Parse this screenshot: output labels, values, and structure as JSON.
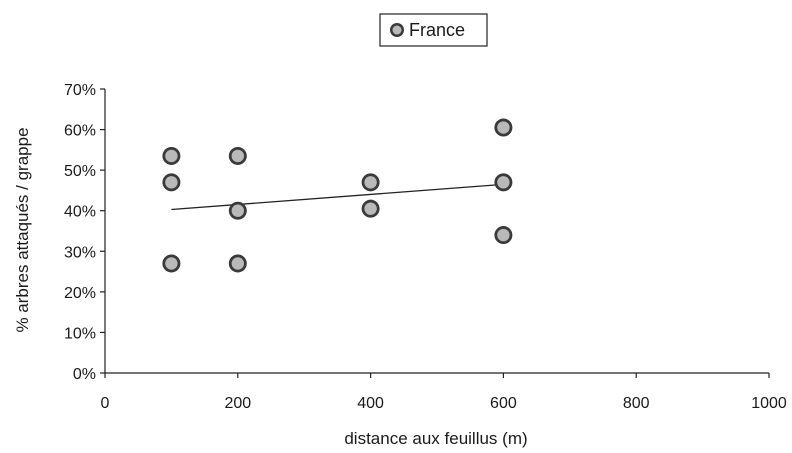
{
  "chart_data": {
    "type": "scatter",
    "xlabel": "distance aux feuillus (m)",
    "ylabel": "% arbres attaqués / grappe",
    "xlim": [
      0,
      1000
    ],
    "ylim": [
      0,
      0.7
    ],
    "x_ticks": [
      "0",
      "200",
      "400",
      "600",
      "800",
      "1000"
    ],
    "y_ticks": [
      "0%",
      "10%",
      "20%",
      "30%",
      "40%",
      "50%",
      "60%",
      "70%"
    ],
    "grid": false,
    "legend_position": "top-center",
    "series": [
      {
        "name": "France",
        "marker_color": "#b9b9b9",
        "points": [
          {
            "x": 100,
            "y": 0.535
          },
          {
            "x": 100,
            "y": 0.47
          },
          {
            "x": 100,
            "y": 0.27
          },
          {
            "x": 200,
            "y": 0.535
          },
          {
            "x": 200,
            "y": 0.4
          },
          {
            "x": 200,
            "y": 0.27
          },
          {
            "x": 400,
            "y": 0.47
          },
          {
            "x": 400,
            "y": 0.405
          },
          {
            "x": 600,
            "y": 0.605
          },
          {
            "x": 600,
            "y": 0.47
          },
          {
            "x": 600,
            "y": 0.34
          }
        ]
      }
    ],
    "trendline": {
      "x": [
        100,
        600
      ],
      "y": [
        0.403,
        0.465
      ]
    }
  }
}
